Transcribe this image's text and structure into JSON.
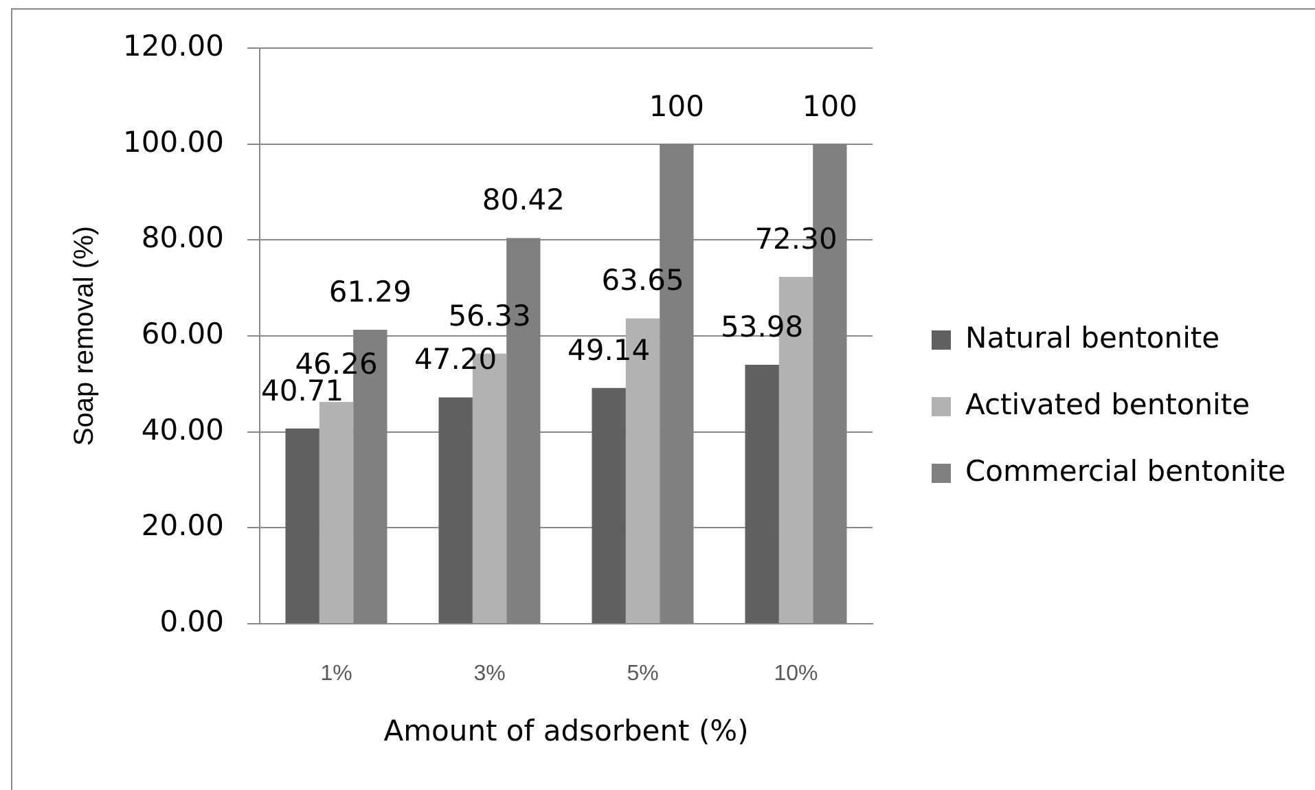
{
  "chart_data": {
    "type": "bar",
    "categories": [
      "1%",
      "3%",
      "5%",
      "10%"
    ],
    "series": [
      {
        "name": "Natural bentonite",
        "color": "#606060",
        "values": [
          40.71,
          47.2,
          49.14,
          53.98
        ],
        "value_labels": [
          "40.71",
          "47.20",
          "49.14",
          "53.98"
        ]
      },
      {
        "name": "Activated bentonite",
        "color": "#b2b2b2",
        "values": [
          46.26,
          56.33,
          63.65,
          72.3
        ],
        "value_labels": [
          "46.26",
          "56.33",
          "63.65",
          "72.30"
        ]
      },
      {
        "name": "Commercial bentonite",
        "color": "#808080",
        "values": [
          61.29,
          80.42,
          100,
          100
        ],
        "value_labels": [
          "61.29",
          "80.42",
          "100",
          "100"
        ]
      }
    ],
    "xlabel": "Amount of adsorbent (%)",
    "ylabel": "Soap removal (%)",
    "ylim": [
      0,
      120
    ],
    "yticks": [
      {
        "value": 0,
        "label": "0.00"
      },
      {
        "value": 20,
        "label": "20.00"
      },
      {
        "value": 40,
        "label": "40.00"
      },
      {
        "value": 60,
        "label": "60.00"
      },
      {
        "value": 80,
        "label": "80.00"
      },
      {
        "value": 100,
        "label": "100.00"
      },
      {
        "value": 120,
        "label": "120.00"
      }
    ],
    "grid": "y",
    "legend": "right"
  }
}
